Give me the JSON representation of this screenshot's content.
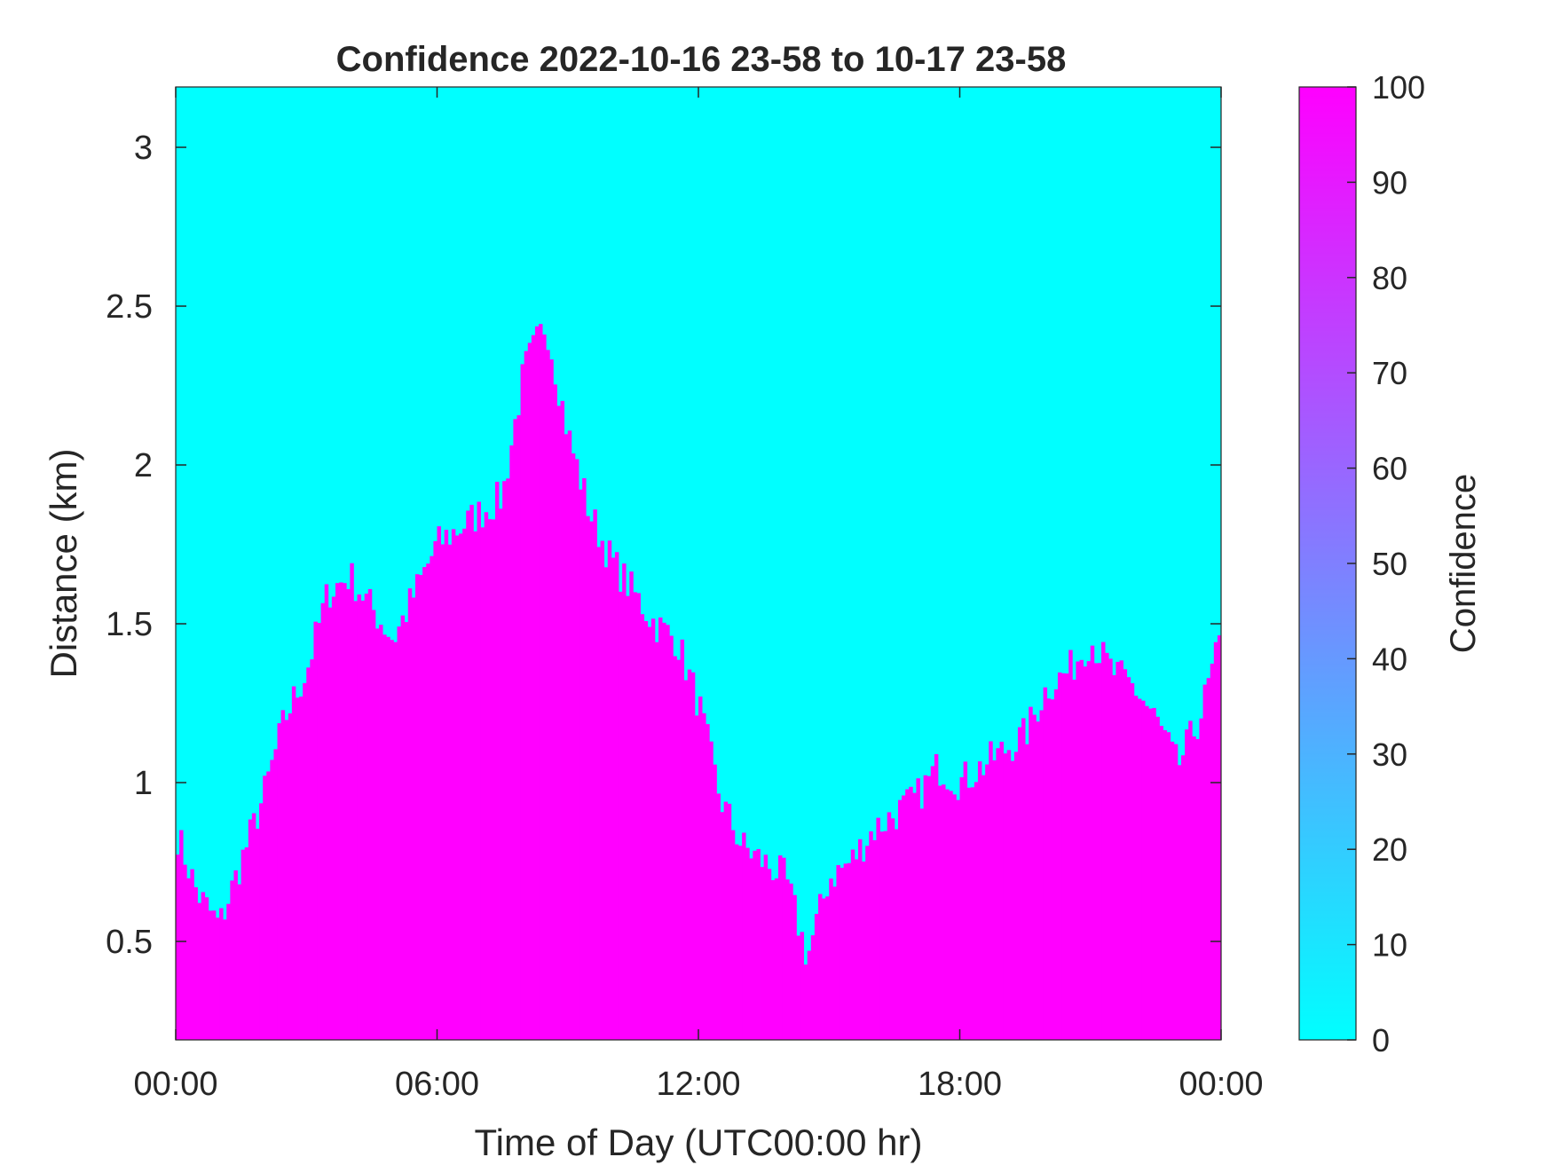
{
  "chart_data": {
    "type": "heatmap",
    "title": "Confidence 2022-10-16 23-58 to 10-17 23-58",
    "xlabel": "Time of Day (UTC00:00 hr)",
    "ylabel": "Distance (km)",
    "xlim": [
      0,
      24
    ],
    "ylim": [
      0.19,
      3.19
    ],
    "x_ticks": [
      0,
      6,
      12,
      18,
      24
    ],
    "x_tick_labels": [
      "00:00",
      "06:00",
      "12:00",
      "18:00",
      "00:00"
    ],
    "y_ticks": [
      0.5,
      1,
      1.5,
      2,
      2.5,
      3
    ],
    "y_tick_labels": [
      "0.5",
      "1",
      "1.5",
      "2",
      "2.5",
      "3"
    ],
    "colorbar": {
      "label": "Confidence",
      "range": [
        0,
        100
      ],
      "ticks": [
        0,
        10,
        20,
        30,
        40,
        50,
        60,
        70,
        80,
        90,
        100
      ],
      "tick_labels": [
        "0",
        "10",
        "20",
        "30",
        "40",
        "50",
        "60",
        "70",
        "80",
        "90",
        "100"
      ],
      "colormap": "cool",
      "color_low": "#00ffff",
      "color_high": "#ff00ff"
    },
    "value_low": 0,
    "value_high": 100,
    "boundary": {
      "description_of_values": "Approximate upper height (km) of the high-confidence (100) region; below is 100, above is 0",
      "x_hours": [
        0,
        0.5,
        1.0,
        1.5,
        2.0,
        2.5,
        3.0,
        3.5,
        4.0,
        4.5,
        5.0,
        5.5,
        6.0,
        6.5,
        7.0,
        7.5,
        8.0,
        8.5,
        9.0,
        9.5,
        10.0,
        10.5,
        11.0,
        11.5,
        12.0,
        12.5,
        13.0,
        13.5,
        14.0,
        14.5,
        15.0,
        15.5,
        16.0,
        16.5,
        17.0,
        17.5,
        18.0,
        18.5,
        19.0,
        19.5,
        20.0,
        20.5,
        21.0,
        21.5,
        22.0,
        22.5,
        23.0,
        23.5,
        24.0
      ],
      "y_km": [
        0.85,
        0.65,
        0.55,
        0.75,
        0.95,
        1.2,
        1.35,
        1.6,
        1.65,
        1.55,
        1.45,
        1.6,
        1.75,
        1.8,
        1.85,
        1.9,
        2.3,
        2.45,
        2.1,
        1.85,
        1.7,
        1.6,
        1.5,
        1.45,
        1.25,
        0.95,
        0.8,
        0.75,
        0.7,
        0.45,
        0.7,
        0.75,
        0.85,
        0.9,
        0.95,
        1.05,
        1.0,
        1.05,
        1.1,
        1.15,
        1.3,
        1.35,
        1.45,
        1.35,
        1.3,
        1.2,
        1.05,
        1.2,
        1.45
      ]
    },
    "grid": false,
    "legend": "colorbar-right"
  }
}
